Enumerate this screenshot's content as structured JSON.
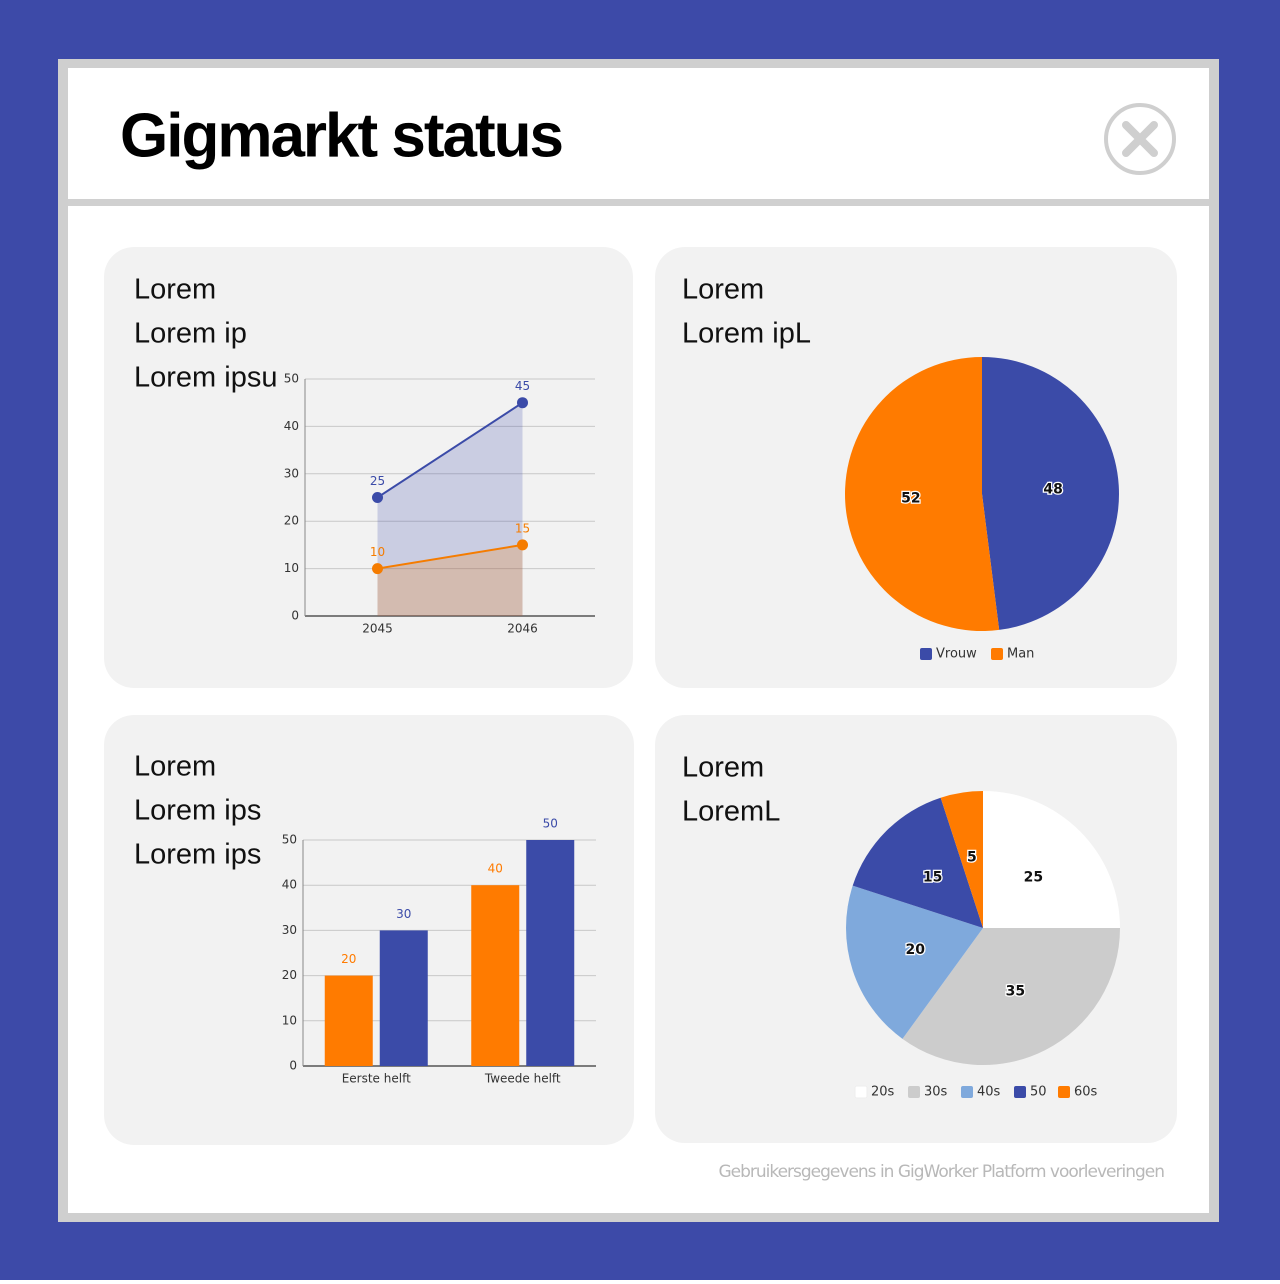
{
  "header": {
    "title": "Gigmarkt status"
  },
  "cards": [
    {
      "lines": [
        "Lorem",
        "Lorem ip",
        "Lorem ipsu"
      ]
    },
    {
      "lines": [
        "Lorem",
        "Lorem ipL"
      ]
    },
    {
      "lines": [
        "Lorem",
        "Lorem ips",
        "Lorem ips"
      ]
    },
    {
      "lines": [
        "Lorem",
        "LoremL"
      ]
    }
  ],
  "chart_data": [
    {
      "type": "area",
      "categories": [
        "2045",
        "2046"
      ],
      "series": [
        {
          "color": "#3b4ba8",
          "values": [
            25,
            45
          ]
        },
        {
          "color": "#f57c00",
          "values": [
            10,
            15
          ]
        }
      ],
      "ylim": [
        0,
        50
      ],
      "yticks": [
        0,
        10,
        20,
        30,
        40,
        50
      ],
      "grid": true
    },
    {
      "type": "pie",
      "categories": [
        "Vrouw",
        "Man"
      ],
      "values": [
        48,
        52
      ],
      "colors": [
        "#3b4ba8",
        "#ff7b00"
      ]
    },
    {
      "type": "bar",
      "categories": [
        "Eerste helft",
        "Tweede helft"
      ],
      "series": [
        {
          "color": "#ff7b00",
          "values": [
            20,
            40
          ]
        },
        {
          "color": "#3b4ba8",
          "values": [
            30,
            50
          ]
        }
      ],
      "ylim": [
        0,
        50
      ],
      "yticks": [
        0,
        10,
        20,
        30,
        40,
        50
      ],
      "grid": true
    },
    {
      "type": "pie",
      "categories": [
        "20s",
        "30s",
        "40s",
        "50",
        "60s"
      ],
      "values": [
        25,
        35,
        20,
        15,
        5
      ],
      "colors": [
        "#ffffff",
        "#cccccc",
        "#7fa9dc",
        "#3b4ba8",
        "#ff7b00"
      ]
    }
  ],
  "footer": "Gebruikersgegevens in GigWorker Platform voorleveringen"
}
